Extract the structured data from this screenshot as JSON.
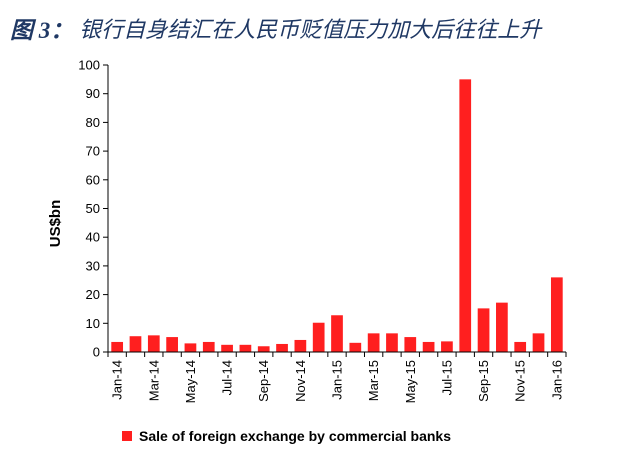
{
  "title": {
    "label": "图 3：",
    "text": "银行自身结汇在人民币贬值压力加大后往往上升"
  },
  "colors": {
    "bar": "#ff1f1f",
    "axis": "#000000",
    "title": "#1f3864"
  },
  "chart_data": {
    "type": "bar",
    "ylabel": "US$bn",
    "ylim": [
      0,
      100
    ],
    "yticks": [
      0,
      10,
      20,
      30,
      40,
      50,
      60,
      70,
      80,
      90,
      100
    ],
    "grid": false,
    "legend_placement": "bottom",
    "categories": [
      "Jan-14",
      "Feb-14",
      "Mar-14",
      "Apr-14",
      "May-14",
      "Jun-14",
      "Jul-14",
      "Aug-14",
      "Sep-14",
      "Oct-14",
      "Nov-14",
      "Dec-14",
      "Jan-15",
      "Feb-15",
      "Mar-15",
      "Apr-15",
      "May-15",
      "Jun-15",
      "Jul-15",
      "Aug-15",
      "Sep-15",
      "Oct-15",
      "Nov-15",
      "Dec-15",
      "Jan-16"
    ],
    "tick_labels": [
      "Jan-14",
      "",
      "Mar-14",
      "",
      "May-14",
      "",
      "Jul-14",
      "",
      "Sep-14",
      "",
      "Nov-14",
      "",
      "Jan-15",
      "",
      "Mar-15",
      "",
      "May-15",
      "",
      "Jul-15",
      "",
      "Sep-15",
      "",
      "Nov-15",
      "",
      "Jan-16"
    ],
    "series": [
      {
        "name": "Sale of foreign exchange by commercial banks",
        "values": [
          3.5,
          5.5,
          5.8,
          5.2,
          3.0,
          3.5,
          2.5,
          2.5,
          2.0,
          2.8,
          4.2,
          10.2,
          12.8,
          3.2,
          6.5,
          6.5,
          5.2,
          3.5,
          3.7,
          95.0,
          15.2,
          17.2,
          3.5,
          6.5,
          26.0
        ]
      }
    ]
  }
}
